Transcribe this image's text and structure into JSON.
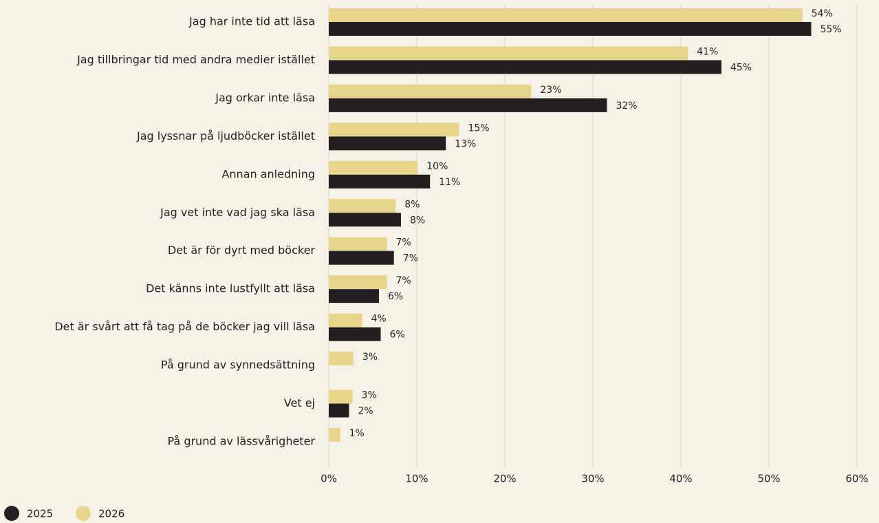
{
  "chart_data": {
    "type": "barh",
    "categories": [
      "Jag har inte tid att läsa",
      "Jag tillbringar tid med andra medier istället",
      "Jag orkar inte läsa",
      "Jag lyssnar på ljudböcker istället",
      "Annan anledning",
      "Jag vet inte vad jag ska läsa",
      "Det är för dyrt med böcker",
      "Det känns inte lustfyllt att läsa",
      "Det är svårt att få tag på de böcker jag vill läsa",
      "På grund av synnedsättning",
      "Vet ej",
      "På grund av lässvårigheter"
    ],
    "series": [
      {
        "name": "2025",
        "color": "#231f20",
        "values": [
          54.8,
          44.6,
          31.6,
          13.3,
          11.5,
          8.2,
          7.4,
          5.7,
          5.9,
          null,
          2.3,
          null
        ],
        "value_labels": [
          "55%",
          "45%",
          "32%",
          "13%",
          "11%",
          "8%",
          "7%",
          "6%",
          "6%",
          null,
          "2%",
          null
        ]
      },
      {
        "name": "2026",
        "color": "#e6d58a",
        "values": [
          53.8,
          40.8,
          23.0,
          14.8,
          10.1,
          7.6,
          6.6,
          6.6,
          3.8,
          2.8,
          2.7,
          1.3
        ],
        "value_labels": [
          "54%",
          "41%",
          "23%",
          "15%",
          "10%",
          "8%",
          "7%",
          "7%",
          "4%",
          "3%",
          "3%",
          "1%"
        ]
      }
    ],
    "xlim": [
      0,
      60
    ],
    "xticks": [
      {
        "value": 0,
        "label": "0%"
      },
      {
        "value": 10,
        "label": "10%"
      },
      {
        "value": 20,
        "label": "20%"
      },
      {
        "value": 30,
        "label": "30%"
      },
      {
        "value": 40,
        "label": "40%"
      },
      {
        "value": 50,
        "label": "50%"
      },
      {
        "value": 60,
        "label": "60%"
      }
    ],
    "grid": true,
    "legend": "bottom-left"
  }
}
